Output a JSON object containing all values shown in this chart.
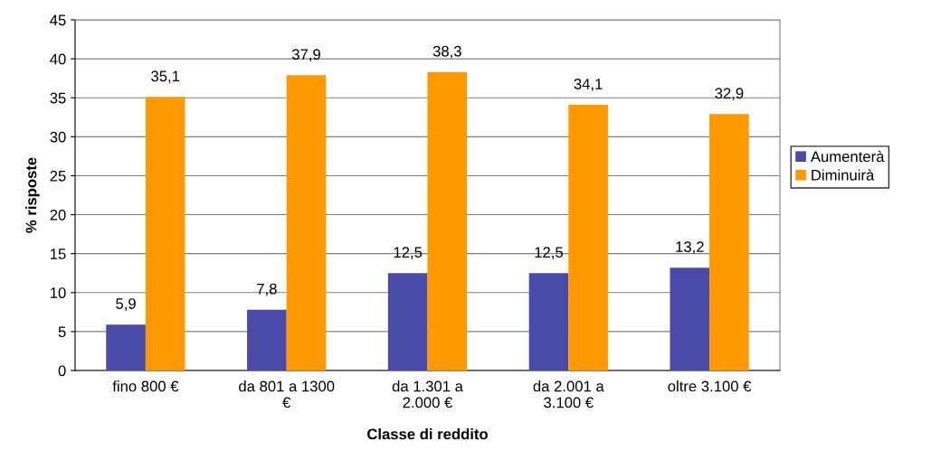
{
  "chart_data": {
    "type": "bar",
    "xlabel": "Classe di reddito",
    "ylabel": "% risposte",
    "categories": [
      "fino 800 €",
      "da 801 a 1300\n€",
      "da 1.301 a\n2.000 €",
      "da 2.001 a\n3.100 €",
      "oltre 3.100 €"
    ],
    "series": [
      {
        "name": "Aumenterà",
        "color": "#4a4aa8",
        "values": [
          5.9,
          7.8,
          12.5,
          12.5,
          13.2
        ],
        "value_labels": [
          "5,9",
          "7,8",
          "12,5",
          "12,5",
          "13,2"
        ]
      },
      {
        "name": "Diminuirà",
        "color": "#ff9900",
        "values": [
          35.1,
          37.9,
          38.3,
          34.1,
          32.9
        ],
        "value_labels": [
          "35,1",
          "37,9",
          "38,3",
          "34,1",
          "32,9"
        ]
      }
    ],
    "ylim": [
      0,
      45
    ],
    "yticks": [
      0,
      5,
      10,
      15,
      20,
      25,
      30,
      35,
      40,
      45
    ],
    "grid": "y",
    "legend": "right"
  }
}
